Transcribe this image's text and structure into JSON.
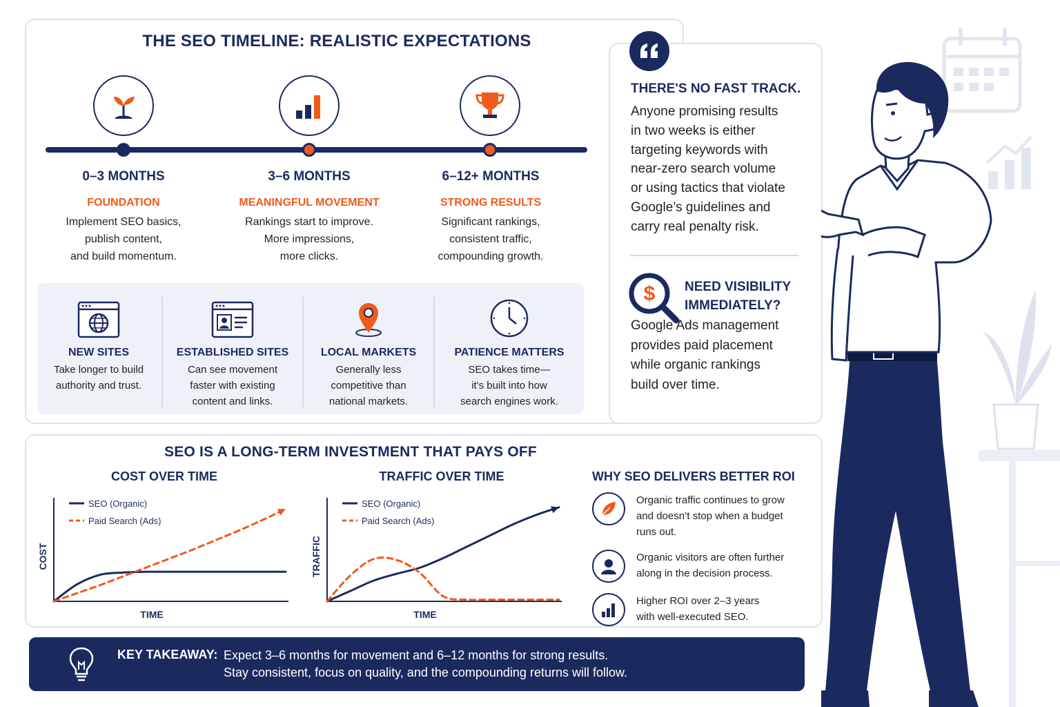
{
  "timeline": {
    "title": "THE SEO TIMELINE: REALISTIC EXPECTATIONS",
    "stages": [
      {
        "range": "0–3 MONTHS",
        "label": "FOUNDATION",
        "desc": [
          "Implement SEO basics,",
          "publish content,",
          "and build momentum."
        ],
        "icon": "sprout-icon"
      },
      {
        "range": "3–6 MONTHS",
        "label": "MEANINGFUL MOVEMENT",
        "desc": [
          "Rankings start to improve.",
          "More impressions,",
          "more clicks."
        ],
        "icon": "bar-chart-icon"
      },
      {
        "range": "6–12+ MONTHS",
        "label": "STRONG RESULTS",
        "desc": [
          "Significant rankings,",
          "consistent traffic,",
          "compounding growth."
        ],
        "icon": "trophy-icon"
      }
    ]
  },
  "factors": [
    {
      "title": "NEW SITES",
      "desc": [
        "Take longer to build",
        "authority and trust."
      ],
      "icon": "globe-browser-icon"
    },
    {
      "title": "ESTABLISHED SITES",
      "desc": [
        "Can see movement",
        "faster with existing",
        "content and links."
      ],
      "icon": "profile-browser-icon"
    },
    {
      "title": "LOCAL MARKETS",
      "desc": [
        "Generally less",
        "competitive than",
        "national markets."
      ],
      "icon": "map-pin-icon"
    },
    {
      "title": "PATIENCE MATTERS",
      "desc": [
        "SEO takes time—",
        "it's built into how",
        "search engines work."
      ],
      "icon": "clock-icon"
    }
  ],
  "quote": {
    "heading": "THERE'S NO FAST TRACK.",
    "body": [
      "Anyone promising results",
      "in two weeks is either",
      "targeting keywords with",
      "near-zero search volume",
      "or using tactics that violate",
      "Google’s guidelines and",
      "carry real penalty risk."
    ],
    "visibility_heading": [
      "NEED VISIBILITY",
      "IMMEDIATELY?"
    ],
    "visibility_body": [
      "Google Ads management",
      "provides paid placement",
      "while organic rankings",
      "build over time."
    ]
  },
  "investment": {
    "title": "SEO IS A LONG-TERM INVESTMENT THAT PAYS OFF",
    "roi_title": "WHY SEO DELIVERS BETTER ROI",
    "roi_items": [
      {
        "icon": "leaf-icon",
        "text": [
          "Organic traffic continues to grow",
          "and doesn’t stop when a budget",
          "runs out."
        ]
      },
      {
        "icon": "person-icon",
        "text": [
          "Organic visitors are often further",
          "along in the decision process."
        ]
      },
      {
        "icon": "bar-chart-icon",
        "text": [
          "Higher ROI over 2–3 years",
          "with well-executed SEO."
        ]
      }
    ]
  },
  "chart_data": [
    {
      "type": "line",
      "title": "COST OVER TIME",
      "xlabel": "TIME",
      "ylabel": "COST",
      "legend": "top-left",
      "x": [
        0,
        1,
        2,
        3,
        4,
        5,
        6,
        7,
        8,
        9,
        10
      ],
      "series": [
        {
          "name": "SEO (Organic)",
          "color": "#1b2a5e",
          "style": "solid",
          "values": [
            0,
            2.3,
            3.6,
            3.9,
            4.0,
            4.0,
            4.0,
            4.0,
            4.0,
            4.0,
            4.0
          ]
        },
        {
          "name": "Paid Search (Ads)",
          "color": "#f05a1a",
          "style": "dashed",
          "values": [
            0,
            1.1,
            2.2,
            3.4,
            4.6,
            5.8,
            7.0,
            8.3,
            9.6,
            11.0,
            12.5
          ]
        }
      ],
      "ylim": [
        0,
        14
      ]
    },
    {
      "type": "line",
      "title": "TRAFFIC OVER TIME",
      "xlabel": "TIME",
      "ylabel": "TRAFFIC",
      "legend": "top-left",
      "x": [
        0,
        1,
        2,
        3,
        4,
        5,
        6,
        7,
        8,
        9,
        10
      ],
      "series": [
        {
          "name": "SEO (Organic)",
          "color": "#1b2a5e",
          "style": "solid",
          "values": [
            0,
            1.2,
            2.4,
            3.2,
            3.9,
            5.0,
            6.3,
            7.6,
            8.9,
            10.0,
            10.9
          ]
        },
        {
          "name": "Paid Search (Ads)",
          "color": "#f05a1a",
          "style": "dashed",
          "values": [
            0,
            3.0,
            4.9,
            4.8,
            3.3,
            0.6,
            0.2,
            0.2,
            0.2,
            0.2,
            0.2
          ]
        }
      ],
      "ylim": [
        0,
        12
      ]
    }
  ],
  "takeaway": {
    "label": "KEY TAKEAWAY:",
    "lines": [
      "Expect 3–6 months for movement and 6–12 months for strong results.",
      "Stay consistent, focus on quality, and the compounding returns will follow."
    ]
  },
  "colors": {
    "navy": "#1b2a5e",
    "orange": "#f05a1a",
    "light_panel": "#eef1f8",
    "illustration_gray": "#c7cfe4"
  }
}
